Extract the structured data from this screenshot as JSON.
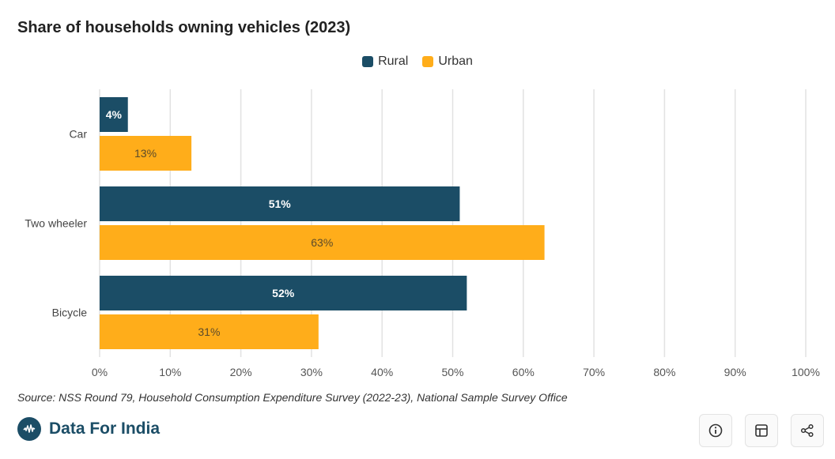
{
  "chart_data": {
    "type": "bar",
    "orientation": "horizontal",
    "title": "Share of households owning vehicles (2023)",
    "categories": [
      "Car",
      "Two wheeler",
      "Bicycle"
    ],
    "series": [
      {
        "name": "Rural",
        "color": "#1b4d66",
        "values": [
          4,
          51,
          52
        ],
        "labels": [
          "4%",
          "51%",
          "52%"
        ]
      },
      {
        "name": "Urban",
        "color": "#ffad1a",
        "values": [
          13,
          63,
          31
        ],
        "labels": [
          "13%",
          "63%",
          "31%"
        ]
      }
    ],
    "xlim": [
      0,
      100
    ],
    "xticks": [
      "0%",
      "10%",
      "20%",
      "30%",
      "40%",
      "50%",
      "60%",
      "70%",
      "80%",
      "90%",
      "100%"
    ],
    "grid": true,
    "legend": "top-center"
  },
  "source": "Source: NSS Round 79, Household Consumption Expenditure Survey (2022-23), National Sample Survey Office",
  "brand": {
    "name": "Data For India"
  },
  "actions": {
    "info_icon": "info-icon",
    "table_icon": "table-icon",
    "share_icon": "share-icon"
  }
}
